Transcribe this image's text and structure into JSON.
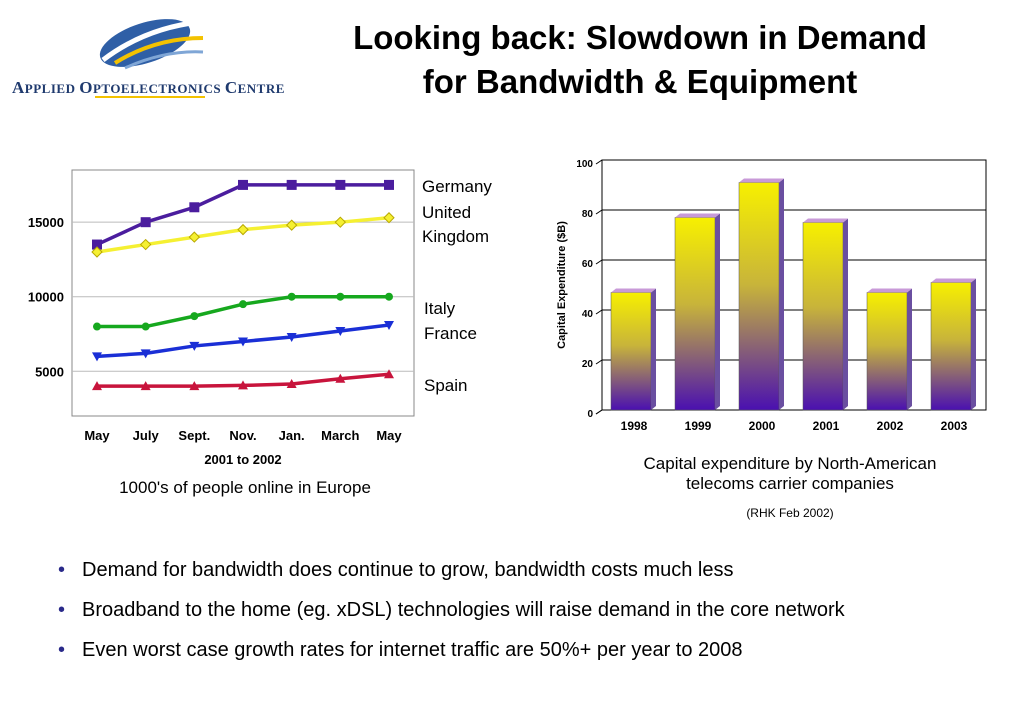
{
  "slide": {
    "title_line1": "Looking back: Slowdown in Demand",
    "title_line2": "for  Bandwidth & Equipment",
    "logo_text_1": "A",
    "logo_text_2": "PPLIED ",
    "logo_text_3": "O",
    "logo_text_4": "PTOELECTRONICS ",
    "logo_text_5": "C",
    "logo_text_6": "ENTRE"
  },
  "left_caption": "1000's of people online in Europe",
  "right_caption_line1": "Capital expenditure by North-American",
  "right_caption_line2": "telecoms carrier companies",
  "right_source": "(RHK Feb 2002)",
  "bullets": [
    "Demand for bandwidth does continue to grow, bandwidth costs much less",
    "Broadband to the home (eg. xDSL) technologies will raise demand in the core network",
    "Even worst case growth rates for internet traffic are 50%+ per year to 2008"
  ],
  "chart_data": [
    {
      "type": "line",
      "title": "",
      "xlabel": "2001 to 2002",
      "ylabel": "",
      "categories": [
        "May",
        "July",
        "Sept.",
        "Nov.",
        "Jan.",
        "March",
        "May"
      ],
      "yticks": [
        5000,
        10000,
        15000
      ],
      "ylim": [
        2000,
        18500
      ],
      "grid": "horizontal",
      "legend": "right",
      "series": [
        {
          "name": "Germany",
          "values": [
            13500,
            15000,
            16000,
            17500,
            17500,
            17500,
            17500
          ],
          "color": "#4b1d9e",
          "marker": "square"
        },
        {
          "name": "United Kingdom",
          "values": [
            13000,
            13500,
            14000,
            14500,
            14800,
            15000,
            15300
          ],
          "color": "#f5f032",
          "marker": "diamond"
        },
        {
          "name": "Italy",
          "values": [
            8000,
            8000,
            8700,
            9500,
            10000,
            10000,
            10000
          ],
          "color": "#16a81e",
          "marker": "circle"
        },
        {
          "name": "France",
          "values": [
            6000,
            6200,
            6700,
            7000,
            7300,
            7700,
            8100
          ],
          "color": "#1a2fd6",
          "marker": "triangle-down"
        },
        {
          "name": "Spain",
          "values": [
            4000,
            4000,
            4000,
            4050,
            4150,
            4500,
            4800
          ],
          "color": "#c8143c",
          "marker": "triangle-up"
        }
      ]
    },
    {
      "type": "bar",
      "title": "",
      "xlabel": "",
      "ylabel": "Capital Expenditure ($B)",
      "categories": [
        "1998",
        "1999",
        "2000",
        "2001",
        "2002",
        "2003"
      ],
      "values": [
        47,
        77,
        91,
        75,
        47,
        51
      ],
      "ylim": [
        0,
        100
      ],
      "yticks": [
        0,
        20,
        40,
        60,
        80,
        100
      ],
      "grid": "horizontal",
      "colors": {
        "top": "#f7f000",
        "bottom": "#4a10b0",
        "cap": "#c89ad8"
      }
    }
  ]
}
